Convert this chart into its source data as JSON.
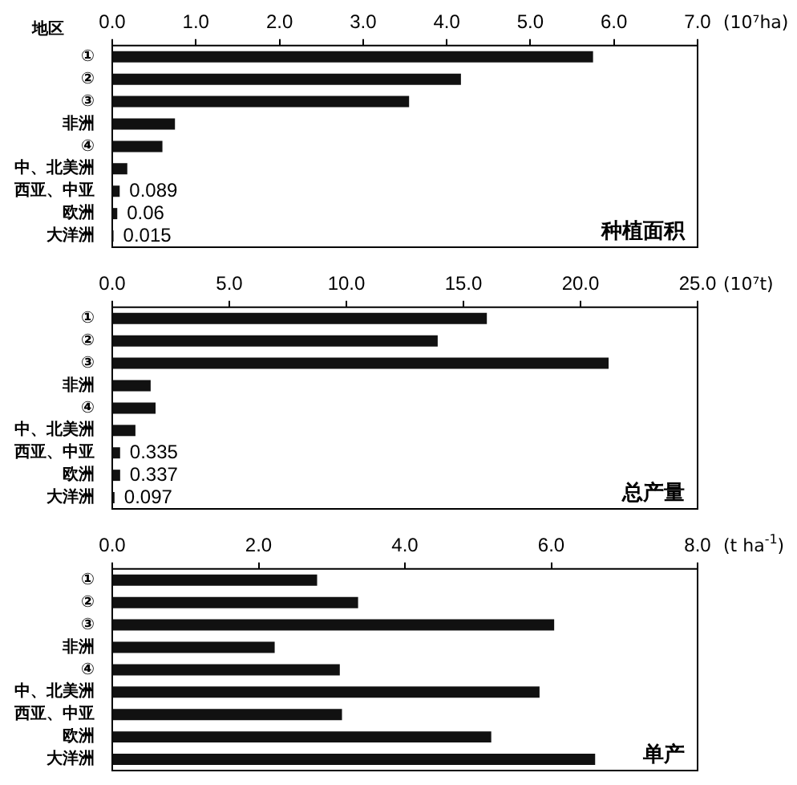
{
  "chart_data": [
    {
      "type": "bar",
      "orientation": "horizontal",
      "title": "种植面积",
      "xlabel": "(10⁷ha)",
      "ylabel": "地区",
      "categories": [
        "①",
        "②",
        "③",
        "非洲",
        "④",
        "中、北美洲",
        "西亚、中亚",
        "欧洲",
        "大洋洲"
      ],
      "values": [
        5.75,
        4.17,
        3.55,
        0.75,
        0.6,
        0.18,
        0.089,
        0.06,
        0.015
      ],
      "value_labels": [
        null,
        null,
        null,
        null,
        null,
        null,
        "0.089",
        "0.06",
        "0.015"
      ],
      "color": "#111111",
      "xlim": [
        0,
        7
      ],
      "xticks": [
        {
          "value": 0,
          "label": "0.0"
        },
        {
          "value": 1,
          "label": "1.0"
        },
        {
          "value": 2,
          "label": "2.0"
        },
        {
          "value": 3,
          "label": "3.0"
        },
        {
          "value": 4,
          "label": "4.0"
        },
        {
          "value": 5,
          "label": "5.0"
        },
        {
          "value": 6,
          "label": "6.0"
        },
        {
          "value": 7,
          "label": "7.0"
        }
      ]
    },
    {
      "type": "bar",
      "orientation": "horizontal",
      "title": "总产量",
      "xlabel": "(10⁷t)",
      "categories": [
        "①",
        "②",
        "③",
        "非洲",
        "④",
        "中、北美洲",
        "西亚、中亚",
        "欧洲",
        "大洋洲"
      ],
      "values": [
        16.0,
        13.9,
        21.2,
        1.64,
        1.85,
        0.99,
        0.335,
        0.337,
        0.097
      ],
      "value_labels": [
        null,
        null,
        null,
        null,
        null,
        null,
        "0.335",
        "0.337",
        "0.097"
      ],
      "color": "#111111",
      "xlim": [
        0,
        25
      ],
      "xticks": [
        {
          "value": 0,
          "label": "0.0"
        },
        {
          "value": 5,
          "label": "5.0"
        },
        {
          "value": 10,
          "label": "10.0"
        },
        {
          "value": 15,
          "label": "15.0"
        },
        {
          "value": 20,
          "label": "20.0"
        },
        {
          "value": 25,
          "label": "25.0"
        }
      ]
    },
    {
      "type": "bar",
      "orientation": "horizontal",
      "title": "单产",
      "xlabel": "(t ha$^{-1}$)",
      "categories": [
        "①",
        "②",
        "③",
        "非洲",
        "④",
        "中、北美洲",
        "西亚、中亚",
        "欧洲",
        "大洋洲"
      ],
      "values": [
        2.8,
        3.36,
        6.04,
        2.22,
        3.11,
        5.84,
        3.14,
        5.18,
        6.6
      ],
      "color": "#111111",
      "xlim": [
        0,
        8
      ],
      "xticks": [
        {
          "value": 0,
          "label": "0.0"
        },
        {
          "value": 2,
          "label": "2.0"
        },
        {
          "value": 4,
          "label": "4.0"
        },
        {
          "value": 6,
          "label": "6.0"
        },
        {
          "value": 8,
          "label": "8.0"
        }
      ]
    }
  ]
}
